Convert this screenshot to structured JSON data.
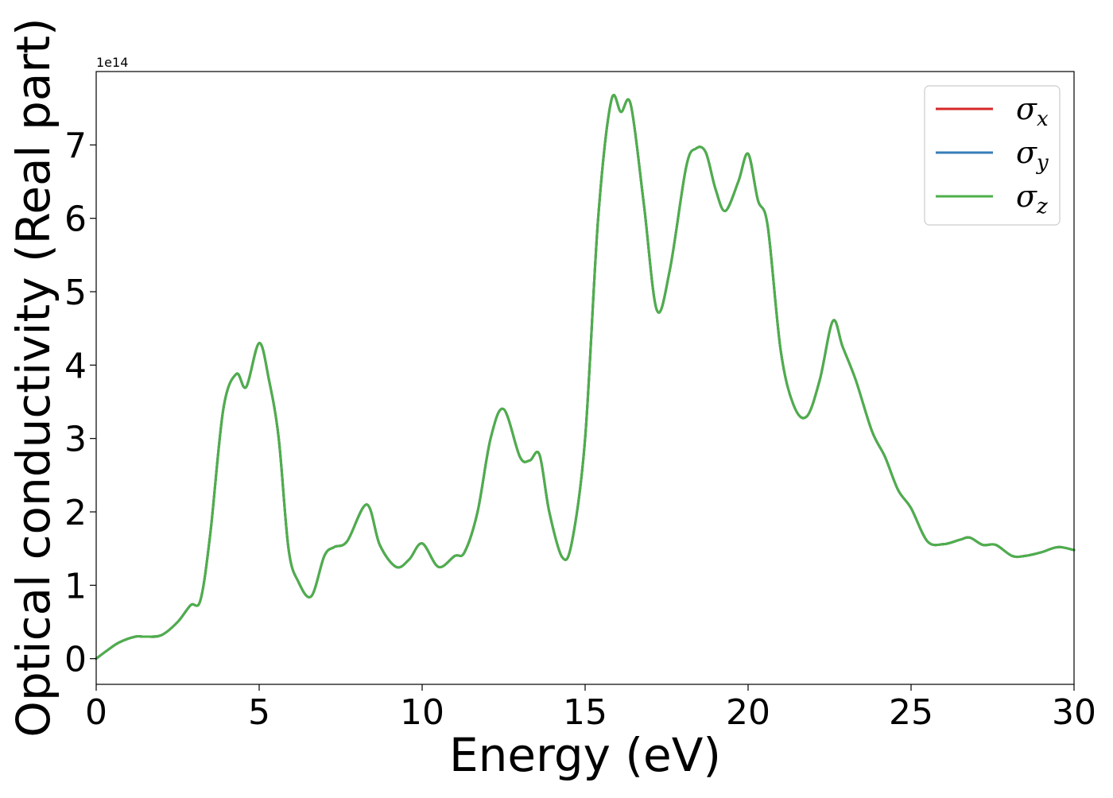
{
  "chart_data": {
    "type": "line",
    "xlabel": "Energy (eV)",
    "ylabel": "Optical conductivity (Real part)",
    "y_offset_label": "1e14",
    "y_scale": 100000000000000.0,
    "xlim": [
      0,
      30
    ],
    "ylim": [
      -0.35,
      8.0
    ],
    "x_ticks": [
      0,
      5,
      10,
      15,
      20,
      25,
      30
    ],
    "x_tick_labels": [
      "0",
      "5",
      "10",
      "15",
      "20",
      "25",
      "30"
    ],
    "y_ticks": [
      0,
      1,
      2,
      3,
      4,
      5,
      6,
      7
    ],
    "y_tick_labels": [
      "0",
      "1",
      "2",
      "3",
      "4",
      "5",
      "6",
      "7"
    ],
    "grid": false,
    "legend_position": "top-right",
    "x": [
      0,
      0.3,
      0.7,
      1.2,
      1.5,
      2.0,
      2.5,
      2.9,
      3.2,
      3.5,
      3.9,
      4.3,
      4.6,
      5.0,
      5.3,
      5.6,
      5.9,
      6.2,
      6.6,
      7.0,
      7.3,
      7.7,
      8.3,
      8.7,
      9.2,
      9.6,
      10.0,
      10.5,
      11.0,
      11.3,
      11.7,
      12.1,
      12.5,
      13.0,
      13.3,
      13.6,
      13.9,
      14.3,
      14.6,
      15.0,
      15.4,
      15.8,
      16.1,
      16.4,
      16.8,
      17.2,
      17.6,
      18.1,
      18.4,
      18.7,
      19.0,
      19.3,
      19.7,
      20.0,
      20.3,
      20.6,
      21.0,
      21.4,
      21.8,
      22.2,
      22.6,
      22.9,
      23.3,
      23.8,
      24.2,
      24.6,
      25.0,
      25.5,
      26.0,
      26.5,
      26.8,
      27.2,
      27.6,
      28.1,
      28.5,
      29.0,
      29.5,
      30.0
    ],
    "series": [
      {
        "name": "σ_x",
        "name_symbol": "σ",
        "name_sub": "x",
        "color": "#d62728",
        "values": [
          0.0,
          0.1,
          0.22,
          0.3,
          0.3,
          0.32,
          0.5,
          0.73,
          0.8,
          1.7,
          3.4,
          3.88,
          3.7,
          4.3,
          3.8,
          3.0,
          1.5,
          1.05,
          0.85,
          1.4,
          1.52,
          1.6,
          2.1,
          1.55,
          1.25,
          1.35,
          1.57,
          1.25,
          1.4,
          1.45,
          2.0,
          3.0,
          3.4,
          2.75,
          2.7,
          2.78,
          2.0,
          1.38,
          1.6,
          3.0,
          6.0,
          7.6,
          7.45,
          7.55,
          6.2,
          4.75,
          5.3,
          6.7,
          6.95,
          6.9,
          6.4,
          6.1,
          6.5,
          6.88,
          6.25,
          5.9,
          4.2,
          3.45,
          3.3,
          3.8,
          4.6,
          4.25,
          3.8,
          3.1,
          2.75,
          2.3,
          2.05,
          1.6,
          1.56,
          1.62,
          1.65,
          1.55,
          1.55,
          1.4,
          1.4,
          1.45,
          1.52,
          1.48
        ]
      },
      {
        "name": "σ_y",
        "name_symbol": "σ",
        "name_sub": "y",
        "color": "#377eb8",
        "values": [
          0.0,
          0.1,
          0.22,
          0.3,
          0.3,
          0.32,
          0.5,
          0.73,
          0.8,
          1.7,
          3.4,
          3.88,
          3.7,
          4.3,
          3.8,
          3.0,
          1.5,
          1.05,
          0.85,
          1.4,
          1.52,
          1.6,
          2.1,
          1.55,
          1.25,
          1.35,
          1.57,
          1.25,
          1.4,
          1.45,
          2.0,
          3.0,
          3.4,
          2.75,
          2.7,
          2.78,
          2.0,
          1.38,
          1.6,
          3.0,
          6.0,
          7.6,
          7.45,
          7.55,
          6.2,
          4.75,
          5.3,
          6.7,
          6.95,
          6.9,
          6.4,
          6.1,
          6.5,
          6.88,
          6.25,
          5.9,
          4.2,
          3.45,
          3.3,
          3.8,
          4.6,
          4.25,
          3.8,
          3.1,
          2.75,
          2.3,
          2.05,
          1.6,
          1.56,
          1.62,
          1.65,
          1.55,
          1.55,
          1.4,
          1.4,
          1.45,
          1.52,
          1.48
        ]
      },
      {
        "name": "σ_z",
        "name_symbol": "σ",
        "name_sub": "z",
        "color": "#4daf4a",
        "values": [
          0.0,
          0.1,
          0.22,
          0.3,
          0.3,
          0.32,
          0.5,
          0.73,
          0.8,
          1.7,
          3.4,
          3.88,
          3.7,
          4.3,
          3.8,
          3.0,
          1.5,
          1.05,
          0.85,
          1.4,
          1.52,
          1.6,
          2.1,
          1.55,
          1.25,
          1.35,
          1.57,
          1.25,
          1.4,
          1.45,
          2.0,
          3.0,
          3.4,
          2.75,
          2.7,
          2.78,
          2.0,
          1.38,
          1.6,
          3.0,
          6.0,
          7.6,
          7.45,
          7.55,
          6.2,
          4.75,
          5.3,
          6.7,
          6.95,
          6.9,
          6.4,
          6.1,
          6.5,
          6.88,
          6.25,
          5.9,
          4.2,
          3.45,
          3.3,
          3.8,
          4.6,
          4.25,
          3.8,
          3.1,
          2.75,
          2.3,
          2.05,
          1.6,
          1.56,
          1.62,
          1.65,
          1.55,
          1.55,
          1.4,
          1.4,
          1.45,
          1.52,
          1.48
        ]
      }
    ]
  }
}
